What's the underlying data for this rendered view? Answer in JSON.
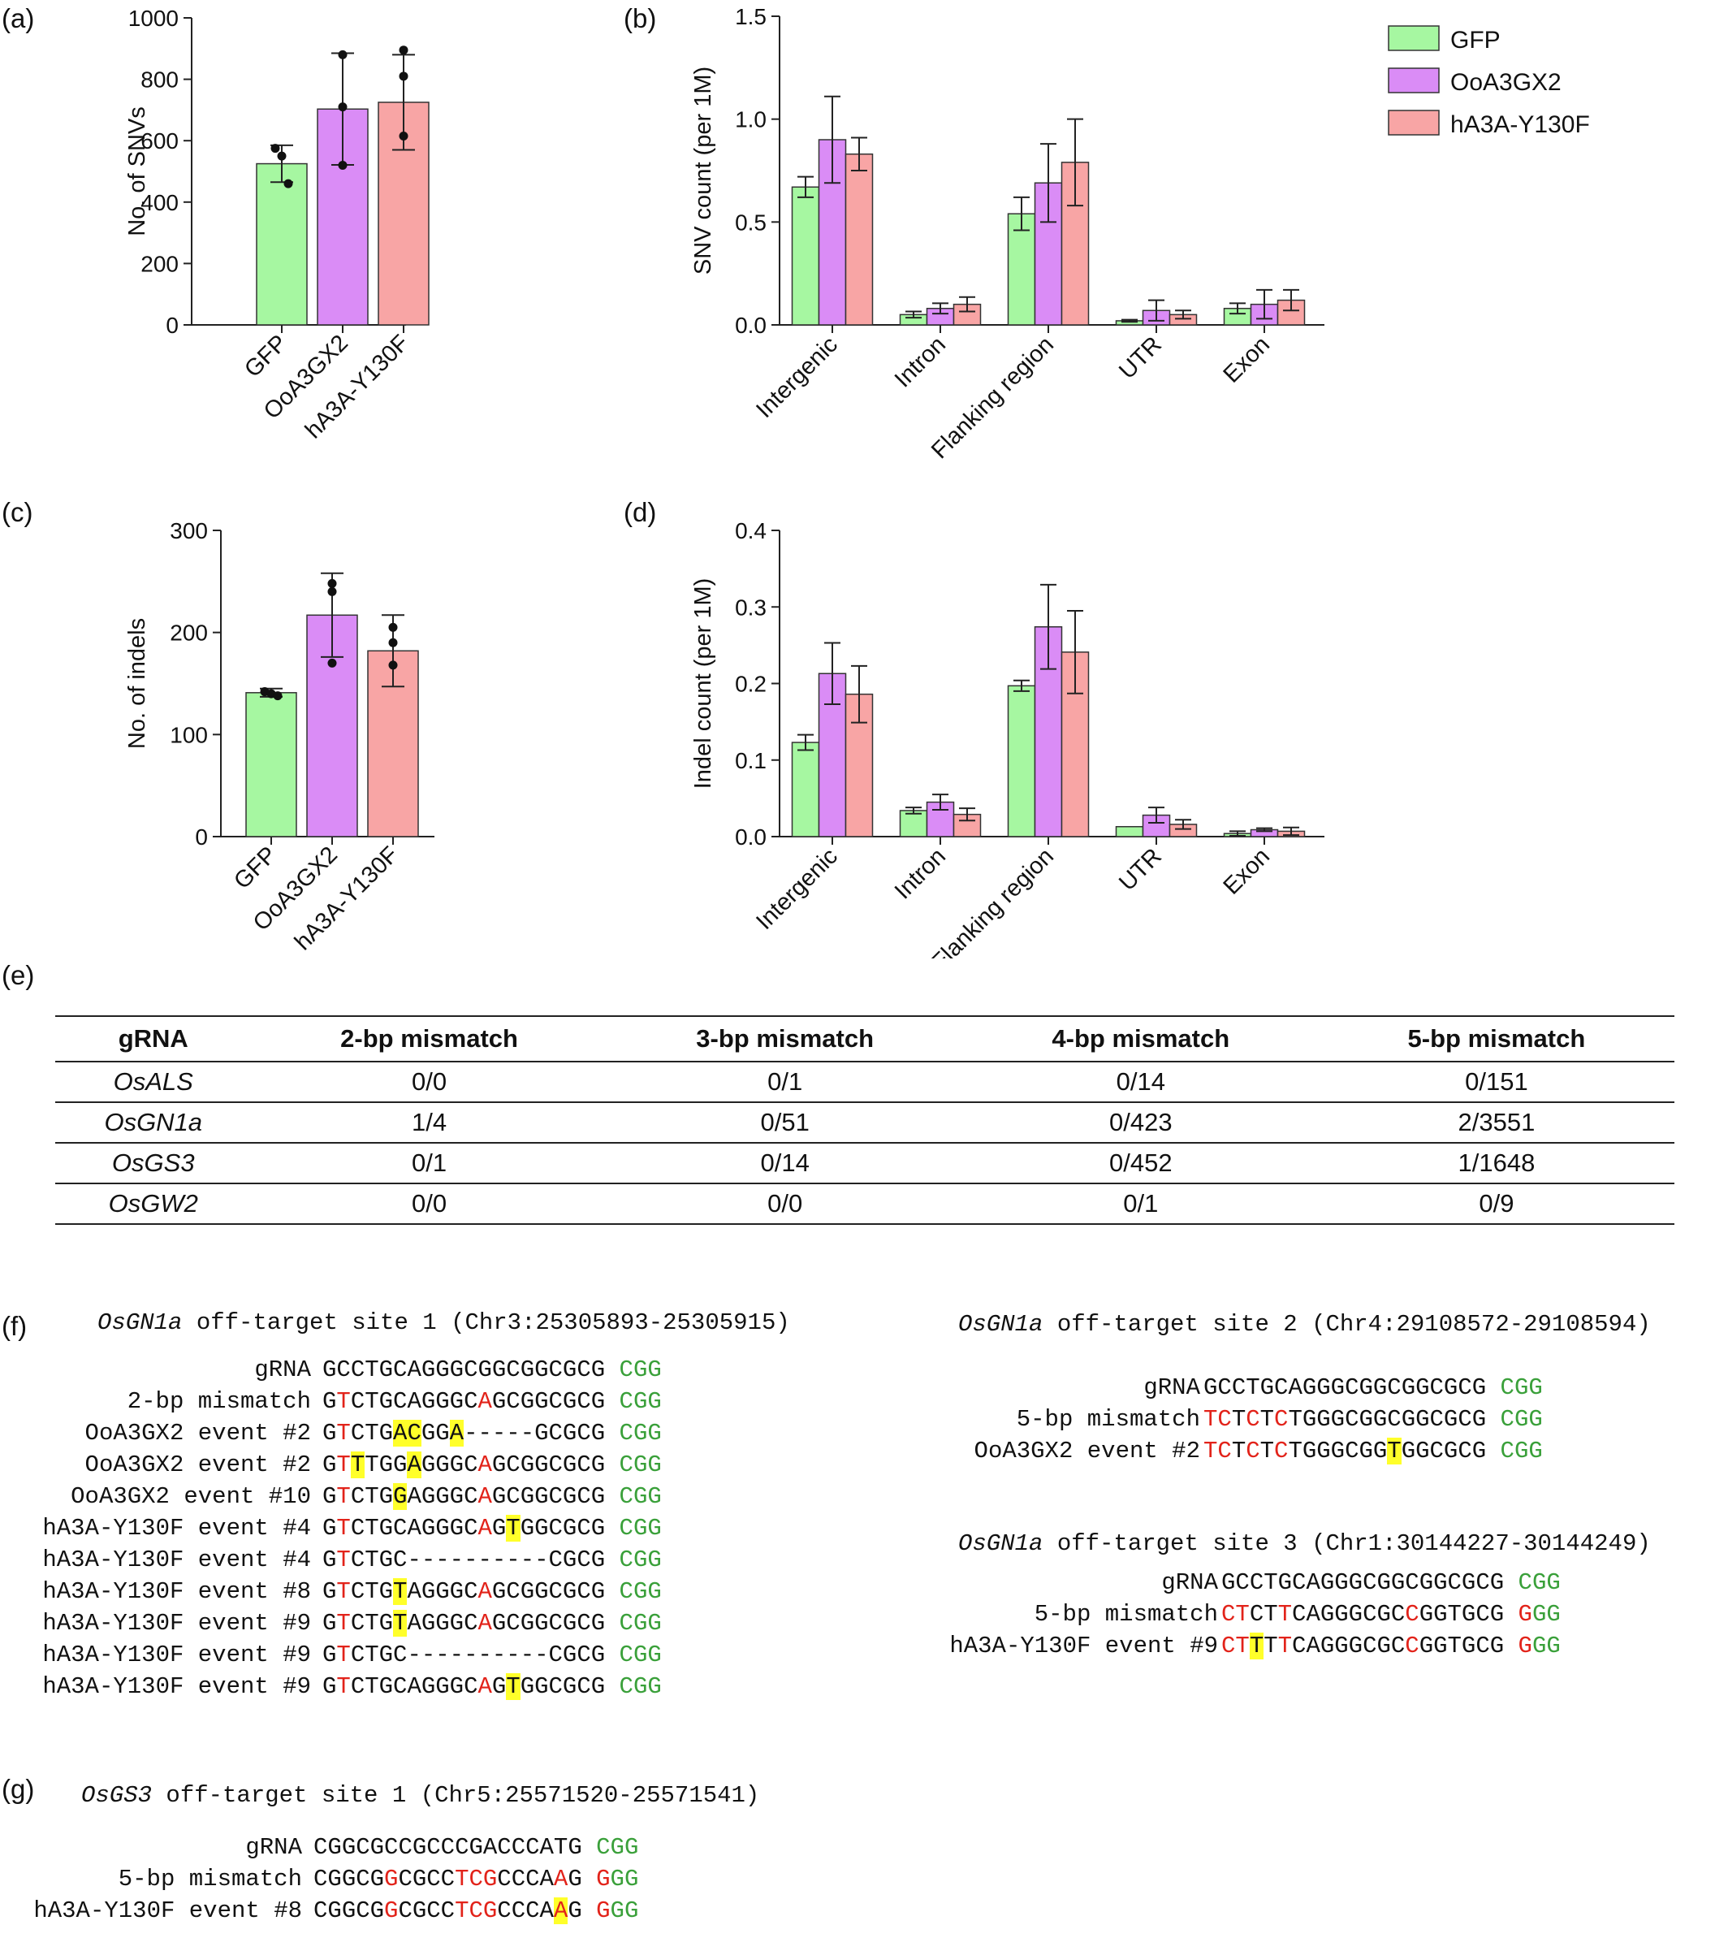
{
  "panel_labels": {
    "a": "(a)",
    "b": "(b)",
    "c": "(c)",
    "d": "(d)",
    "e": "(e)",
    "f": "(f)",
    "g": "(g)"
  },
  "colors": {
    "GFP": "#a6f7a1",
    "OoA3GX2": "#da8cf6",
    "hA3A-Y130F": "#f8a5a5",
    "mismatch": "#e2231a",
    "pam": "#3aa03a",
    "highlight": "#ffff2a"
  },
  "chart_data": [
    {
      "id": "a",
      "type": "bar",
      "categories": [
        "GFP",
        "OoA3GX2",
        "hA3A-Y130F"
      ],
      "values": [
        525,
        703,
        725
      ],
      "errors": [
        60,
        182,
        155
      ],
      "points": [
        [
          575,
          550,
          460
        ],
        [
          880,
          710,
          520
        ],
        [
          895,
          810,
          615
        ]
      ],
      "title": "",
      "xlabel": "",
      "ylabel": "No. of SNVs",
      "ylim": [
        0,
        1000
      ],
      "yticks": [
        "0",
        "200",
        "400",
        "600",
        "800",
        "1000"
      ]
    },
    {
      "id": "b",
      "type": "bar",
      "categories": [
        "Intergenic",
        "Intron",
        "Flanking region",
        "UTR",
        "Exon"
      ],
      "series": [
        {
          "name": "GFP",
          "values": [
            0.67,
            0.05,
            0.54,
            0.02,
            0.08
          ],
          "errors": [
            0.05,
            0.015,
            0.08,
            0.005,
            0.025
          ]
        },
        {
          "name": "OoA3GX2",
          "values": [
            0.9,
            0.08,
            0.69,
            0.07,
            0.1
          ],
          "errors": [
            0.21,
            0.025,
            0.19,
            0.05,
            0.07
          ]
        },
        {
          "name": "hA3A-Y130F",
          "values": [
            0.83,
            0.1,
            0.79,
            0.05,
            0.12
          ],
          "errors": [
            0.08,
            0.035,
            0.21,
            0.02,
            0.05
          ]
        }
      ],
      "title": "",
      "xlabel": "",
      "ylabel": "SNV count (per 1M)",
      "ylim": [
        0,
        1.5
      ],
      "yticks": [
        "0.0",
        "0.5",
        "1.0",
        "1.5"
      ],
      "legend": "top-right"
    },
    {
      "id": "c",
      "type": "bar",
      "categories": [
        "GFP",
        "OoA3GX2",
        "hA3A-Y130F"
      ],
      "values": [
        141,
        217,
        182
      ],
      "errors": [
        4,
        41,
        35
      ],
      "points": [
        [
          142,
          140,
          138
        ],
        [
          248,
          240,
          170
        ],
        [
          205,
          190,
          168
        ]
      ],
      "title": "",
      "xlabel": "",
      "ylabel": "No. of indels",
      "ylim": [
        0,
        300
      ],
      "yticks": [
        "0",
        "100",
        "200",
        "300"
      ]
    },
    {
      "id": "d",
      "type": "bar",
      "categories": [
        "Intergenic",
        "Intron",
        "Flanking region",
        "UTR",
        "Exon"
      ],
      "series": [
        {
          "name": "GFP",
          "values": [
            0.123,
            0.034,
            0.197,
            0.013,
            0.004
          ],
          "errors": [
            0.01,
            0.004,
            0.007,
            0.0,
            0.003
          ]
        },
        {
          "name": "OoA3GX2",
          "values": [
            0.213,
            0.045,
            0.274,
            0.028,
            0.009
          ],
          "errors": [
            0.04,
            0.01,
            0.055,
            0.01,
            0.002
          ]
        },
        {
          "name": "hA3A-Y130F",
          "values": [
            0.186,
            0.029,
            0.241,
            0.016,
            0.007
          ],
          "errors": [
            0.037,
            0.008,
            0.054,
            0.006,
            0.005
          ]
        }
      ],
      "title": "",
      "xlabel": "",
      "ylabel": "Indel count (per 1M)",
      "ylim": [
        0,
        0.4
      ],
      "yticks": [
        "0.0",
        "0.1",
        "0.2",
        "0.3",
        "0.4"
      ]
    },
    {
      "id": "e",
      "type": "table",
      "columns": [
        "gRNA",
        "2-bp mismatch",
        "3-bp mismatch",
        "4-bp mismatch",
        "5-bp mismatch"
      ],
      "rows": [
        [
          "OsALS",
          "0/0",
          "0/1",
          "0/14",
          "0/151"
        ],
        [
          "OsGN1a",
          "1/4",
          "0/51",
          "0/423",
          "2/3551"
        ],
        [
          "OsGS3",
          "0/1",
          "0/14",
          "0/452",
          "1/1648"
        ],
        [
          "OsGW2",
          "0/0",
          "0/0",
          "0/1",
          "0/9"
        ]
      ]
    }
  ],
  "sequences": {
    "f_site1": {
      "gene": "OsGN1a",
      "title_rest": " off-target site 1 (Chr3:25305893-25305915)",
      "rows": [
        {
          "label": "gRNA",
          "seq": "GCCTGCAGGGCGGCGGCGCG",
          "pam": "CGG"
        },
        {
          "label": "2-bp mismatch",
          "seq": "GTCTGCAGGGCAGCGGCGCG",
          "pam": "CGG"
        },
        {
          "label": "OoA3GX2 event #2",
          "seq": "GTCTGACGGA-----GCGCG",
          "pam": "CGG"
        },
        {
          "label": "OoA3GX2 event #2",
          "seq": "GTTTGGAGGGCAGCGGCGCG",
          "pam": "CGG"
        },
        {
          "label": "OoA3GX2 event #10",
          "seq": "GTCTGGAGGGCAGCGGCGCG",
          "pam": "CGG"
        },
        {
          "label": "hA3A-Y130F event #4",
          "seq": "GTCTGCAGGGCAGTGGCGCG",
          "pam": "CGG"
        },
        {
          "label": "hA3A-Y130F event #4",
          "seq": "GTCTGC----------CGCG",
          "pam": "CGG"
        },
        {
          "label": "hA3A-Y130F event #8",
          "seq": "GTCTGTAGGGCAGCGGCGCG",
          "pam": "CGG"
        },
        {
          "label": "hA3A-Y130F event #9",
          "seq": "GTCTGTAGGGCAGCGGCGCG",
          "pam": "CGG"
        },
        {
          "label": "hA3A-Y130F event #9",
          "seq": "GTCTGC----------CGCG",
          "pam": "CGG"
        },
        {
          "label": "hA3A-Y130F event #9",
          "seq": "GTCTGCAGGGCAGTGGCGCG",
          "pam": "CGG"
        }
      ]
    },
    "f_site2": {
      "gene": "OsGN1a",
      "title_rest": " off-target site 2 (Chr4:29108572-29108594)",
      "rows": [
        {
          "label": "gRNA",
          "seq": "GCCTGCAGGGCGGCGGCGCG",
          "pam": "CGG"
        },
        {
          "label": "5-bp mismatch",
          "seq": "TCTCTCTGGGCGGCGGCGCG",
          "pam": "CGG"
        },
        {
          "label": "OoA3GX2 event #2",
          "seq": "TCTCTCTGGGCGGTGGCGCG",
          "pam": "CGG"
        }
      ]
    },
    "f_site3": {
      "gene": "OsGN1a",
      "title_rest": " off-target site 3 (Chr1:30144227-30144249)",
      "rows": [
        {
          "label": "gRNA",
          "seq": "GCCTGCAGGGCGGCGGCGCG",
          "pam": "CGG"
        },
        {
          "label": "5-bp mismatch",
          "seq": "CTCTTCAGGGCGCCGGTGCG",
          "pam": "GGG"
        },
        {
          "label": "hA3A-Y130F event #9",
          "seq": "CTTTTCAGGGCGCCGGTGCG",
          "pam": "GGG"
        }
      ]
    },
    "g_site1": {
      "gene": "OsGS3",
      "title_rest": " off-target site 1 (Chr5:25571520-25571541)",
      "rows": [
        {
          "label": "gRNA",
          "seq": "CGGCGCCGCCCGACCCATG",
          "pam": "CGG"
        },
        {
          "label": "5-bp mismatch",
          "seq": "CGGCGGCGCCTCGCCCAAG",
          "pam": "GGG"
        },
        {
          "label": "hA3A-Y130F event #8",
          "seq": "CGGCGGCGCCTCGCCCAAG",
          "pam": "GGG"
        }
      ]
    }
  }
}
